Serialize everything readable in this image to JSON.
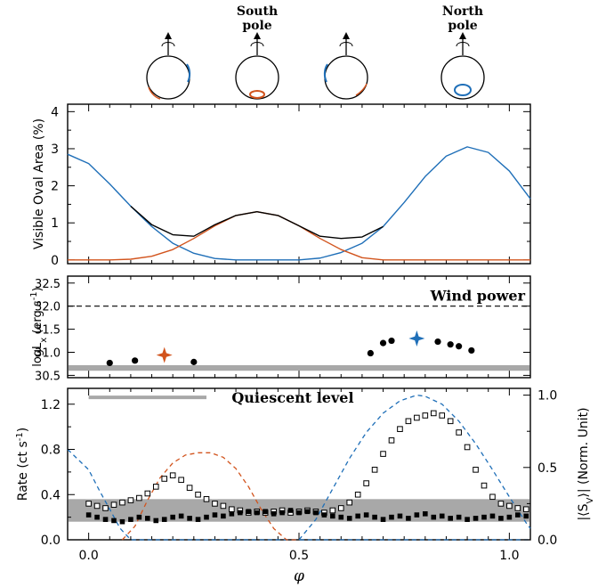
{
  "chart_data": [
    {
      "type": "line",
      "panel": "top",
      "ylabel": "Visible Oval Area (%)",
      "xlim": [
        -0.05,
        1.05
      ],
      "ylim": [
        -0.1,
        4.2
      ],
      "yticks": [
        "0",
        "1",
        "2",
        "3",
        "4"
      ],
      "series": [
        {
          "color": "#1f6fb8",
          "x": [
            -0.05,
            0.0,
            0.05,
            0.1,
            0.15,
            0.2,
            0.25,
            0.3,
            0.35,
            0.4,
            0.45,
            0.5,
            0.55,
            0.6,
            0.65,
            0.7,
            0.75,
            0.8,
            0.85,
            0.9,
            0.95,
            1.0,
            1.05
          ],
          "y": [
            2.85,
            2.6,
            2.05,
            1.45,
            0.9,
            0.45,
            0.18,
            0.04,
            0.0,
            0.0,
            0.0,
            0.0,
            0.05,
            0.2,
            0.45,
            0.9,
            1.55,
            2.25,
            2.8,
            3.05,
            2.9,
            2.4,
            1.65
          ]
        },
        {
          "color": "#d2541d",
          "x": [
            -0.05,
            0.0,
            0.05,
            0.1,
            0.15,
            0.2,
            0.25,
            0.3,
            0.35,
            0.4,
            0.45,
            0.5,
            0.55,
            0.6,
            0.65,
            0.7,
            1.05
          ],
          "y": [
            0.0,
            0.0,
            0.0,
            0.02,
            0.1,
            0.28,
            0.58,
            0.92,
            1.2,
            1.3,
            1.2,
            0.92,
            0.58,
            0.28,
            0.06,
            0.0,
            0.0
          ]
        },
        {
          "color": "#000000",
          "x": [
            0.1,
            0.15,
            0.2,
            0.25,
            0.3,
            0.35,
            0.4,
            0.45,
            0.5,
            0.55,
            0.6,
            0.65,
            0.7
          ],
          "y": [
            1.45,
            0.95,
            0.68,
            0.64,
            0.95,
            1.2,
            1.3,
            1.2,
            0.92,
            0.64,
            0.58,
            0.62,
            0.9
          ]
        }
      ]
    },
    {
      "type": "scatter",
      "panel": "middle",
      "ylabel": "logL_x (erg s^-1)",
      "ylim": [
        30.45,
        32.65
      ],
      "yticks": [
        "30.5",
        "31.0",
        "31.5",
        "32.0",
        "32.5"
      ],
      "annotation": "Wind power",
      "wind_power_level": 32.0,
      "quiescent_band": [
        30.6,
        30.72
      ],
      "points": {
        "x": [
          0.05,
          0.11,
          0.25,
          0.67,
          0.7,
          0.72,
          0.83,
          0.86,
          0.88,
          0.91
        ],
        "y": [
          30.77,
          30.82,
          30.79,
          30.98,
          31.2,
          31.25,
          31.23,
          31.17,
          31.13,
          31.04
        ]
      },
      "stars": [
        {
          "x": 0.18,
          "y": 30.94,
          "color": "#d2541d"
        },
        {
          "x": 0.78,
          "y": 31.3,
          "color": "#1f6fb8"
        }
      ]
    },
    {
      "type": "scatter",
      "panel": "bottom",
      "xlabel": "φ",
      "ylabel": "Rate (ct s^-1)",
      "ylabel_right": "|⟨S_V⟩| (Norm. Unit)",
      "xlim": [
        -0.05,
        1.05
      ],
      "ylim": [
        0.0,
        1.34
      ],
      "yticks_left": [
        "0.0",
        "0.4",
        "0.8",
        "1.2"
      ],
      "yticks_right": [
        "0.0",
        "0.5",
        "1.0"
      ],
      "xticks": [
        "0.0",
        "0.5",
        "1.0"
      ],
      "annotation": "Quiescent level",
      "quiescent_band": [
        0.16,
        0.36
      ],
      "open_squares": {
        "x": [
          0.0,
          0.02,
          0.04,
          0.06,
          0.08,
          0.1,
          0.12,
          0.14,
          0.16,
          0.18,
          0.2,
          0.22,
          0.24,
          0.26,
          0.28,
          0.3,
          0.32,
          0.34,
          0.36,
          0.38,
          0.4,
          0.42,
          0.44,
          0.46,
          0.48,
          0.5,
          0.52,
          0.54,
          0.56,
          0.58,
          0.6,
          0.62,
          0.64,
          0.66,
          0.68,
          0.7,
          0.72,
          0.74,
          0.76,
          0.78,
          0.8,
          0.82,
          0.84,
          0.86,
          0.88,
          0.9,
          0.92,
          0.94,
          0.96,
          0.98,
          1.0,
          1.02,
          1.04
        ],
        "y": [
          0.32,
          0.3,
          0.28,
          0.31,
          0.33,
          0.35,
          0.37,
          0.41,
          0.47,
          0.54,
          0.57,
          0.53,
          0.46,
          0.4,
          0.36,
          0.32,
          0.3,
          0.27,
          0.26,
          0.24,
          0.25,
          0.24,
          0.25,
          0.26,
          0.24,
          0.25,
          0.26,
          0.25,
          0.24,
          0.26,
          0.28,
          0.33,
          0.4,
          0.5,
          0.62,
          0.76,
          0.88,
          0.98,
          1.05,
          1.08,
          1.1,
          1.12,
          1.1,
          1.05,
          0.95,
          0.82,
          0.62,
          0.48,
          0.38,
          0.32,
          0.3,
          0.28,
          0.27
        ]
      },
      "filled_squares": {
        "x": [
          0.0,
          0.02,
          0.04,
          0.06,
          0.08,
          0.1,
          0.12,
          0.14,
          0.16,
          0.18,
          0.2,
          0.22,
          0.24,
          0.26,
          0.28,
          0.3,
          0.32,
          0.34,
          0.36,
          0.38,
          0.4,
          0.42,
          0.44,
          0.46,
          0.48,
          0.5,
          0.52,
          0.54,
          0.56,
          0.58,
          0.6,
          0.62,
          0.64,
          0.66,
          0.68,
          0.7,
          0.72,
          0.74,
          0.76,
          0.78,
          0.8,
          0.82,
          0.84,
          0.86,
          0.88,
          0.9,
          0.92,
          0.94,
          0.96,
          0.98,
          1.0,
          1.02,
          1.04
        ],
        "y": [
          0.22,
          0.2,
          0.18,
          0.17,
          0.16,
          0.18,
          0.2,
          0.19,
          0.17,
          0.18,
          0.2,
          0.21,
          0.19,
          0.18,
          0.2,
          0.22,
          0.21,
          0.23,
          0.24,
          0.25,
          0.24,
          0.25,
          0.23,
          0.24,
          0.26,
          0.24,
          0.25,
          0.24,
          0.22,
          0.21,
          0.2,
          0.19,
          0.21,
          0.22,
          0.2,
          0.18,
          0.2,
          0.21,
          0.19,
          0.22,
          0.23,
          0.2,
          0.21,
          0.19,
          0.2,
          0.18,
          0.19,
          0.2,
          0.21,
          0.19,
          0.2,
          0.22,
          0.21
        ]
      },
      "dashed_curves": [
        {
          "color": "#1f6fb8",
          "x": [
            -0.05,
            0.0,
            0.025,
            0.05,
            0.075,
            0.1,
            1.05
          ],
          "y": [
            0.8,
            0.62,
            0.44,
            0.27,
            0.1,
            0.0,
            0.0
          ]
        },
        {
          "color": "#d2541d",
          "x": [
            0.08,
            0.11,
            0.14,
            0.17,
            0.2,
            0.23,
            0.26,
            0.29,
            0.32,
            0.35,
            0.38,
            0.41,
            0.44,
            0.47,
            0.5
          ],
          "y": [
            0.0,
            0.12,
            0.35,
            0.55,
            0.68,
            0.75,
            0.77,
            0.77,
            0.73,
            0.63,
            0.47,
            0.27,
            0.1,
            0.0,
            0.0
          ]
        },
        {
          "color": "#1f6fb8",
          "x": [
            0.5,
            0.54,
            0.58,
            0.62,
            0.66,
            0.7,
            0.74,
            0.78,
            0.8,
            0.84,
            0.88,
            0.92,
            0.96,
            1.0,
            1.04,
            1.05
          ],
          "y": [
            0.0,
            0.18,
            0.45,
            0.72,
            0.95,
            1.12,
            1.23,
            1.28,
            1.27,
            1.2,
            1.05,
            0.85,
            0.62,
            0.38,
            0.15,
            0.1
          ]
        }
      ]
    }
  ],
  "schematics": {
    "labels": [
      "South pole",
      "North pole"
    ],
    "south_pole_label": "South\npole",
    "north_pole_label": "North\npole"
  },
  "colors": {
    "blue": "#1f6fb8",
    "orange": "#d2541d",
    "band": "#a8a8a8"
  }
}
